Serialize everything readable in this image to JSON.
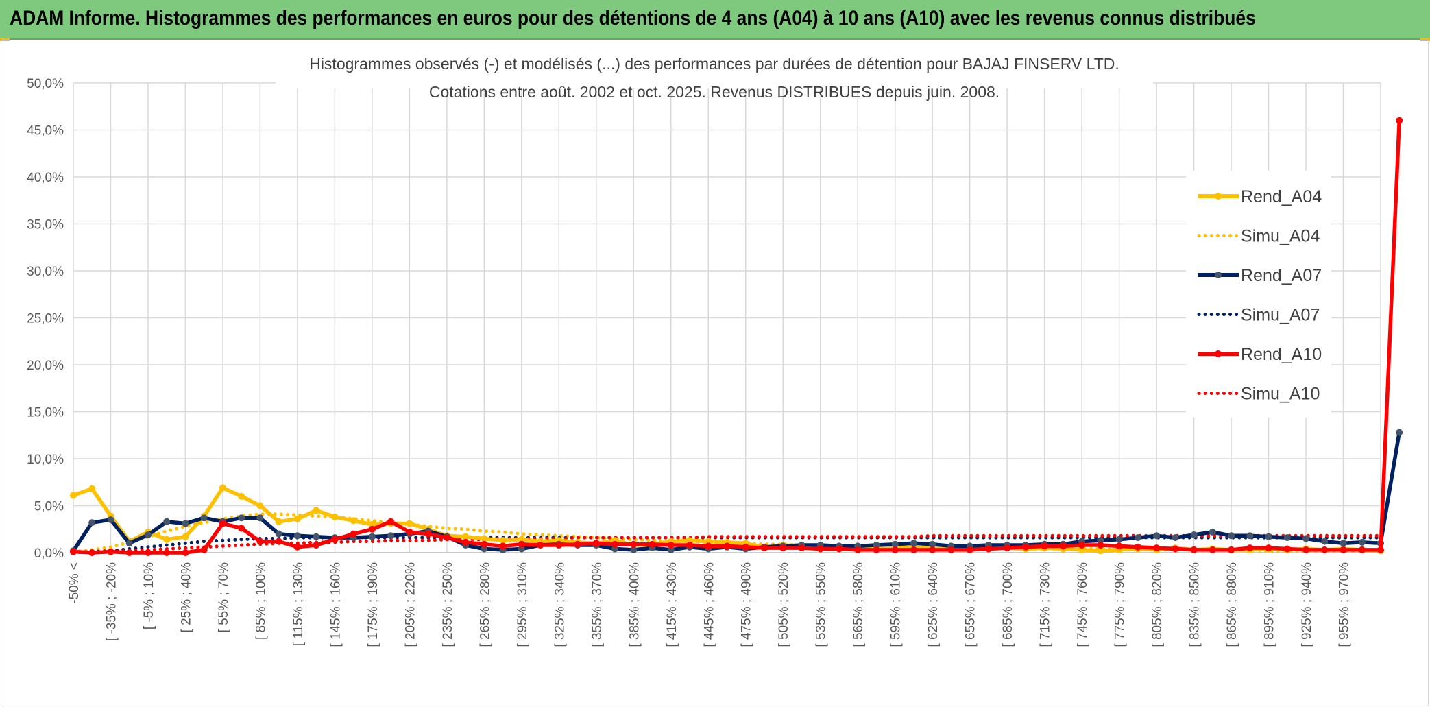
{
  "header": {
    "title": "ADAM Informe. Histogrammes des performances en euros pour des détentions de 4 ans (A04) à 10 ans (A10) avec les revenus connus distribués"
  },
  "chart_data": {
    "type": "line",
    "title": "Histogrammes observés (-) et modélisés (...) des performances par durées de détention pour BAJAJ FINSERV LTD.",
    "subtitle": "Cotations entre août. 2002 et oct. 2025. Revenus DISTRIBUES depuis juin. 2008.",
    "ylim": [
      0,
      50
    ],
    "yticks": [
      "0,0%",
      "5,0%",
      "10,0%",
      "15,0%",
      "20,0%",
      "25,0%",
      "30,0%",
      "35,0%",
      "40,0%",
      "45,0%",
      "50,0%"
    ],
    "grid": true,
    "legend_position": "top-right",
    "x_labels": [
      "-50% <",
      "[ -35% ; -20%",
      "[ -5% ; 10%",
      "[ 25% ; 40%",
      "[ 55% ; 70%",
      "[ 85% ; 100%",
      "[ 115% ; 130%",
      "[ 145% ; 160%",
      "[ 175% ; 190%",
      "[ 205% ; 220%",
      "[ 235% ; 250%",
      "[ 265% ; 280%",
      "[ 295% ; 310%",
      "[ 325% ; 340%",
      "[ 355% ; 370%",
      "[ 385% ; 400%",
      "[ 415% ; 430%",
      "[ 445% ; 460%",
      "[ 475% ; 490%",
      "[ 505% ; 520%",
      "[ 535% ; 550%",
      "[ 565% ; 580%",
      "[ 595% ; 610%",
      "[ 625% ; 640%",
      "[ 655% ; 670%",
      "[ 685% ; 700%",
      "[ 715% ; 730%",
      "[ 745% ; 760%",
      "[ 775% ; 790%",
      "[ 805% ; 820%",
      "[ 835% ; 850%",
      "[ 865% ; 880%",
      "[ 895% ; 910%",
      "[ 925% ; 940%",
      "[ 955% ; 970%"
    ],
    "series": [
      {
        "name": "Rend_A04",
        "style": "solid",
        "color": "#ffc000",
        "values": [
          6.1,
          6.8,
          3.9,
          1.2,
          2.2,
          1.4,
          1.7,
          3.9,
          6.9,
          6.0,
          5.0,
          3.3,
          3.6,
          4.5,
          3.8,
          3.4,
          3.0,
          3.1,
          3.1,
          2.5,
          1.8,
          1.7,
          1.5,
          1.3,
          1.4,
          1.2,
          1.3,
          1.1,
          1.0,
          1.3,
          0.8,
          0.9,
          1.2,
          1.3,
          1.2,
          1.1,
          1.0,
          0.5,
          0.8,
          0.7,
          0.6,
          0.5,
          0.7,
          0.6,
          0.6,
          0.5,
          0.5,
          0.6,
          0.6,
          0.5,
          0.5,
          0.4,
          0.5,
          0.4,
          0.3,
          0.2,
          0.3,
          0.4,
          0.3,
          0.5,
          0.3,
          0.4,
          0.3,
          0.3,
          0.4,
          0.3,
          0.4,
          0.3,
          0.4,
          0.3,
          0.2
        ]
      },
      {
        "name": "Simu_A04",
        "style": "dotted",
        "color": "#ffc000",
        "values": [
          0.1,
          0.3,
          0.6,
          1.1,
          1.7,
          2.3,
          2.8,
          3.2,
          3.6,
          3.9,
          4.1,
          4.1,
          4.0,
          3.9,
          3.8,
          3.6,
          3.4,
          3.2,
          3.0,
          2.8,
          2.6,
          2.5,
          2.3,
          2.2,
          2.0,
          1.9,
          1.8,
          1.7,
          1.6,
          1.5,
          1.4,
          1.3,
          1.2,
          1.2,
          1.1,
          1.0,
          1.0,
          0.9,
          0.9,
          0.8,
          0.8,
          0.7,
          0.7,
          0.7,
          0.6,
          0.6,
          0.6,
          0.5,
          0.5,
          0.5,
          0.5,
          0.4,
          0.4,
          0.4,
          0.4,
          0.4,
          0.3,
          0.3,
          0.3,
          0.3,
          0.3,
          0.3,
          0.3,
          0.3,
          0.2,
          0.2,
          0.2,
          0.2,
          0.2,
          0.2,
          0.2
        ]
      },
      {
        "name": "Rend_A07",
        "style": "solid",
        "color": "#002060",
        "values": [
          0.2,
          3.2,
          3.5,
          1.0,
          1.9,
          3.3,
          3.1,
          3.7,
          3.3,
          3.7,
          3.7,
          2.0,
          1.8,
          1.7,
          1.6,
          1.6,
          1.7,
          1.8,
          2.0,
          2.3,
          1.7,
          0.8,
          0.4,
          0.3,
          0.4,
          0.8,
          0.9,
          0.8,
          0.8,
          0.4,
          0.3,
          0.5,
          0.3,
          0.6,
          0.4,
          0.6,
          0.4,
          0.6,
          0.7,
          0.8,
          0.8,
          0.7,
          0.7,
          0.8,
          0.9,
          1.0,
          0.9,
          0.7,
          0.7,
          0.8,
          0.8,
          0.8,
          0.9,
          0.9,
          1.2,
          1.3,
          1.4,
          1.6,
          1.8,
          1.6,
          1.9,
          2.2,
          1.8,
          1.8,
          1.7,
          1.6,
          1.5,
          1.2,
          1.0,
          1.1,
          1.0,
          12.8
        ]
      },
      {
        "name": "Simu_A07",
        "style": "dotted",
        "color": "#002060",
        "values": [
          0.05,
          0.1,
          0.2,
          0.4,
          0.6,
          0.8,
          1.0,
          1.2,
          1.3,
          1.4,
          1.5,
          1.5,
          1.6,
          1.6,
          1.6,
          1.6,
          1.6,
          1.6,
          1.6,
          1.6,
          1.6,
          1.6,
          1.6,
          1.6,
          1.6,
          1.6,
          1.6,
          1.6,
          1.6,
          1.6,
          1.6,
          1.6,
          1.6,
          1.6,
          1.6,
          1.6,
          1.6,
          1.6,
          1.6,
          1.6,
          1.6,
          1.6,
          1.6,
          1.6,
          1.6,
          1.6,
          1.6,
          1.6,
          1.6,
          1.6,
          1.6,
          1.6,
          1.6,
          1.6,
          1.6,
          1.6,
          1.6,
          1.6,
          1.6,
          1.6,
          1.6,
          1.6,
          1.6,
          1.6,
          1.6,
          1.6,
          1.6,
          1.6,
          1.6,
          1.6,
          1.6
        ]
      },
      {
        "name": "Rend_A10",
        "style": "solid",
        "color": "#ff0000",
        "values": [
          0.1,
          0.0,
          0.1,
          0.0,
          0.0,
          0.0,
          0.0,
          0.3,
          3.1,
          2.6,
          1.2,
          1.2,
          0.6,
          0.8,
          1.4,
          2.0,
          2.5,
          3.3,
          2.2,
          2.0,
          1.6,
          1.1,
          0.9,
          0.7,
          0.9,
          0.8,
          0.8,
          0.9,
          1.0,
          0.9,
          0.9,
          0.9,
          0.8,
          0.8,
          0.7,
          0.7,
          0.6,
          0.5,
          0.5,
          0.5,
          0.4,
          0.4,
          0.3,
          0.3,
          0.3,
          0.3,
          0.3,
          0.3,
          0.3,
          0.4,
          0.5,
          0.6,
          0.7,
          0.7,
          0.8,
          0.8,
          0.7,
          0.6,
          0.5,
          0.4,
          0.3,
          0.3,
          0.3,
          0.5,
          0.5,
          0.4,
          0.3,
          0.3,
          0.3,
          0.3,
          0.3,
          46.0
        ]
      },
      {
        "name": "Simu_A10",
        "style": "dotted",
        "color": "#ff0000",
        "values": [
          0.02,
          0.05,
          0.1,
          0.2,
          0.3,
          0.4,
          0.5,
          0.6,
          0.7,
          0.8,
          0.9,
          1.0,
          1.0,
          1.1,
          1.1,
          1.2,
          1.2,
          1.3,
          1.3,
          1.3,
          1.4,
          1.4,
          1.4,
          1.5,
          1.5,
          1.5,
          1.5,
          1.6,
          1.6,
          1.6,
          1.6,
          1.6,
          1.6,
          1.6,
          1.7,
          1.7,
          1.7,
          1.7,
          1.7,
          1.7,
          1.7,
          1.7,
          1.7,
          1.7,
          1.7,
          1.7,
          1.8,
          1.8,
          1.8,
          1.8,
          1.8,
          1.8,
          1.8,
          1.8,
          1.8,
          1.8,
          1.8,
          1.8,
          1.8,
          1.8,
          1.8,
          1.8,
          1.8,
          1.8,
          1.8,
          1.8,
          1.8,
          1.8,
          1.8,
          1.8,
          1.8
        ]
      }
    ]
  }
}
